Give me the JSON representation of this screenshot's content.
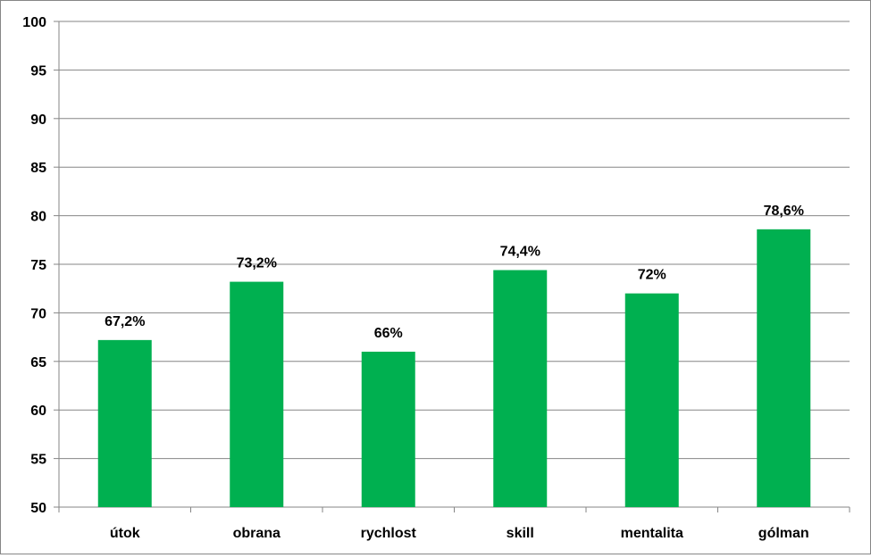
{
  "chart_data": {
    "type": "bar",
    "categories": [
      "útok",
      "obrana",
      "rychlost",
      "skill",
      "mentalita",
      "gólman"
    ],
    "values": [
      67.2,
      73.2,
      66,
      74.4,
      72,
      78.6
    ],
    "data_labels": [
      "67,2%",
      "73,2%",
      "66%",
      "74,4%",
      "72%",
      "78,6%"
    ],
    "ylim": [
      50,
      100
    ],
    "yticks": [
      50,
      55,
      60,
      65,
      70,
      75,
      80,
      85,
      90,
      95,
      100
    ],
    "grid": true,
    "legend": "none",
    "title": "",
    "xlabel": "",
    "ylabel": "",
    "bar_color": "#00B050",
    "grid_color": "#868686"
  }
}
